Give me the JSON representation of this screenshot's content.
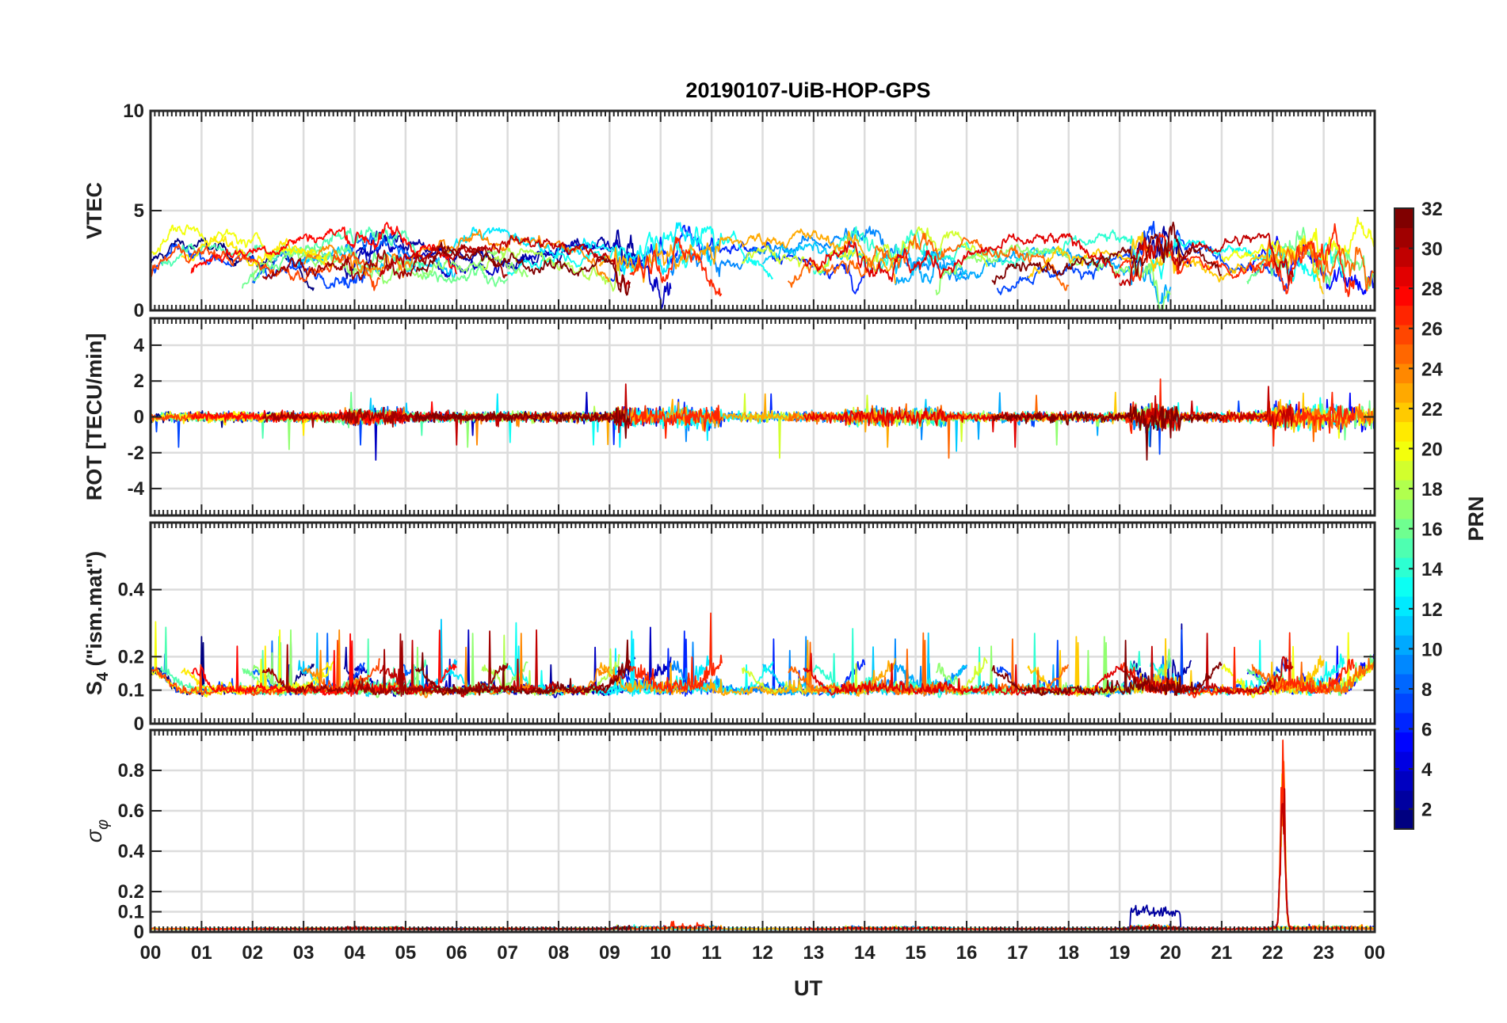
{
  "chart_data": {
    "type": "line",
    "title": "20190107-UiB-HOP-GPS",
    "xlabel": "UT",
    "x_ticks": [
      "00",
      "01",
      "02",
      "03",
      "04",
      "05",
      "06",
      "07",
      "08",
      "09",
      "10",
      "11",
      "12",
      "13",
      "14",
      "15",
      "16",
      "17",
      "18",
      "19",
      "20",
      "21",
      "22",
      "23",
      "00"
    ],
    "xlim": [
      0,
      24
    ],
    "panels": [
      {
        "ylabel": "VTEC",
        "ylim": [
          0,
          10
        ],
        "y_ticks": [
          0,
          5,
          10
        ],
        "y_tick_labels": [
          "0",
          "5",
          "10"
        ],
        "grid": true,
        "kind": "vtec"
      },
      {
        "ylabel": "ROT [TECU/min]",
        "ylim": [
          -5.5,
          5.5
        ],
        "y_ticks": [
          -4,
          -2,
          0,
          2,
          4
        ],
        "y_tick_labels": [
          "-4",
          "-2",
          "0",
          "2",
          "4"
        ],
        "grid": true,
        "kind": "rot"
      },
      {
        "ylabel": "S4 (\"ism.mat\")",
        "ylabel_main": "S",
        "ylabel_sub": "4",
        "ylabel_rest": " (\"ism.mat\")",
        "ylim": [
          0,
          0.6
        ],
        "y_ticks": [
          0,
          0.1,
          0.2,
          0.4
        ],
        "y_tick_labels": [
          "0",
          "0.1",
          "0.2",
          "0.4"
        ],
        "grid": true,
        "kind": "s4"
      },
      {
        "ylabel": "σφ",
        "ylabel_main": "σ",
        "ylabel_sub": "φ",
        "ylim": [
          0,
          1
        ],
        "y_ticks": [
          0,
          0.1,
          0.2,
          0.4,
          0.6,
          0.8
        ],
        "y_tick_labels": [
          "0",
          "0.1",
          "0.2",
          "0.4",
          "0.6",
          "0.8"
        ],
        "grid": true,
        "kind": "sigma"
      }
    ],
    "colorbar": {
      "label": "PRN",
      "range": [
        1,
        32
      ],
      "ticks": [
        2,
        4,
        6,
        8,
        10,
        12,
        14,
        16,
        18,
        20,
        22,
        24,
        26,
        28,
        30,
        32
      ],
      "colormap": "jet",
      "levels": 32
    },
    "series_note": "Many satellite PRN traces (1–32) colored by PRN; values approximated",
    "series": [
      {
        "prn": 1,
        "segments": [
          [
            0.0,
            3.2
          ]
        ],
        "vtec_base": 2.8
      },
      {
        "prn": 2,
        "segments": [
          [
            3.8,
            9.5
          ],
          [
            19.2,
            20.4
          ]
        ],
        "vtec_base": 3.0
      },
      {
        "prn": 3,
        "segments": [
          [
            4.0,
            10.2
          ]
        ],
        "vtec_base": 2.6
      },
      {
        "prn": 5,
        "segments": [
          [
            21.5,
            24.0
          ]
        ],
        "vtec_base": 2.6
      },
      {
        "prn": 6,
        "segments": [
          [
            9.0,
            14.0
          ]
        ],
        "vtec_base": 2.8
      },
      {
        "prn": 7,
        "segments": [
          [
            0.0,
            4.2
          ],
          [
            16.6,
            22.3
          ]
        ],
        "vtec_base": 2.4
      },
      {
        "prn": 8,
        "segments": [
          [
            2.0,
            5.2
          ]
        ],
        "vtec_base": 3.0
      },
      {
        "prn": 9,
        "segments": [
          [
            10.2,
            16.0
          ]
        ],
        "vtec_base": 3.1
      },
      {
        "prn": 10,
        "segments": [
          [
            14.6,
            20.0
          ]
        ],
        "vtec_base": 2.4
      },
      {
        "prn": 11,
        "segments": [
          [
            2.9,
            6.0
          ],
          [
            12.0,
            16.0
          ]
        ],
        "vtec_base": 2.8
      },
      {
        "prn": 12,
        "segments": [
          [
            5.8,
            11.0
          ]
        ],
        "vtec_base": 3.4
      },
      {
        "prn": 13,
        "segments": [
          [
            7.0,
            12.2
          ],
          [
            19.6,
            23.4
          ]
        ],
        "vtec_base": 3.0
      },
      {
        "prn": 14,
        "segments": [
          [
            13.0,
            19.4
          ]
        ],
        "vtec_base": 3.2
      },
      {
        "prn": 15,
        "segments": [
          [
            0.2,
            5.4
          ]
        ],
        "vtec_base": 3.3
      },
      {
        "prn": 16,
        "segments": [
          [
            1.8,
            7.0
          ],
          [
            21.5,
            24.0
          ]
        ],
        "vtec_base": 2.4
      },
      {
        "prn": 17,
        "segments": [
          [
            2.0,
            7.4
          ],
          [
            15.4,
            20.0
          ]
        ],
        "vtec_base": 2.4
      },
      {
        "prn": 18,
        "segments": [
          [
            6.5,
            9.2
          ]
        ],
        "vtec_base": 2.5
      },
      {
        "prn": 19,
        "segments": [
          [
            11.6,
            16.4
          ]
        ],
        "vtec_base": 3.1
      },
      {
        "prn": 20,
        "segments": [
          [
            0.0,
            3.6
          ],
          [
            21.0,
            24.0
          ]
        ],
        "vtec_base": 3.6
      },
      {
        "prn": 21,
        "segments": [
          [
            0.6,
            3.5
          ]
        ],
        "vtec_base": 3.6
      },
      {
        "prn": 22,
        "segments": [
          [
            17.2,
            23.0
          ]
        ],
        "vtec_base": 2.4
      },
      {
        "prn": 23,
        "segments": [
          [
            8.8,
            14.6
          ]
        ],
        "vtec_base": 3.2
      },
      {
        "prn": 24,
        "segments": [
          [
            3.0,
            9.0
          ]
        ],
        "vtec_base": 3.1
      },
      {
        "prn": 25,
        "segments": [
          [
            12.5,
            18.0
          ],
          [
            21.6,
            24.0
          ]
        ],
        "vtec_base": 2.8
      },
      {
        "prn": 26,
        "segments": [
          [
            0.0,
            4.5
          ]
        ],
        "vtec_base": 2.5
      },
      {
        "prn": 27,
        "segments": [
          [
            9.4,
            11.2
          ],
          [
            19.0,
            23.6
          ]
        ],
        "vtec_base": 2.6
      },
      {
        "prn": 28,
        "segments": [
          [
            0.8,
            6.0
          ]
        ],
        "vtec_base": 3.4
      },
      {
        "prn": 29,
        "segments": [
          [
            12.8,
            19.0
          ]
        ],
        "vtec_base": 2.9
      },
      {
        "prn": 30,
        "segments": [
          [
            4.5,
            9.4
          ],
          [
            19.0,
            22.4
          ]
        ],
        "vtec_base": 3.0
      },
      {
        "prn": 31,
        "segments": [
          [
            2.2,
            7.0
          ]
        ],
        "vtec_base": 2.5
      },
      {
        "prn": 32,
        "segments": [
          [
            5.2,
            9.4
          ],
          [
            16.5,
            21.0
          ]
        ],
        "vtec_base": 2.6
      }
    ]
  }
}
